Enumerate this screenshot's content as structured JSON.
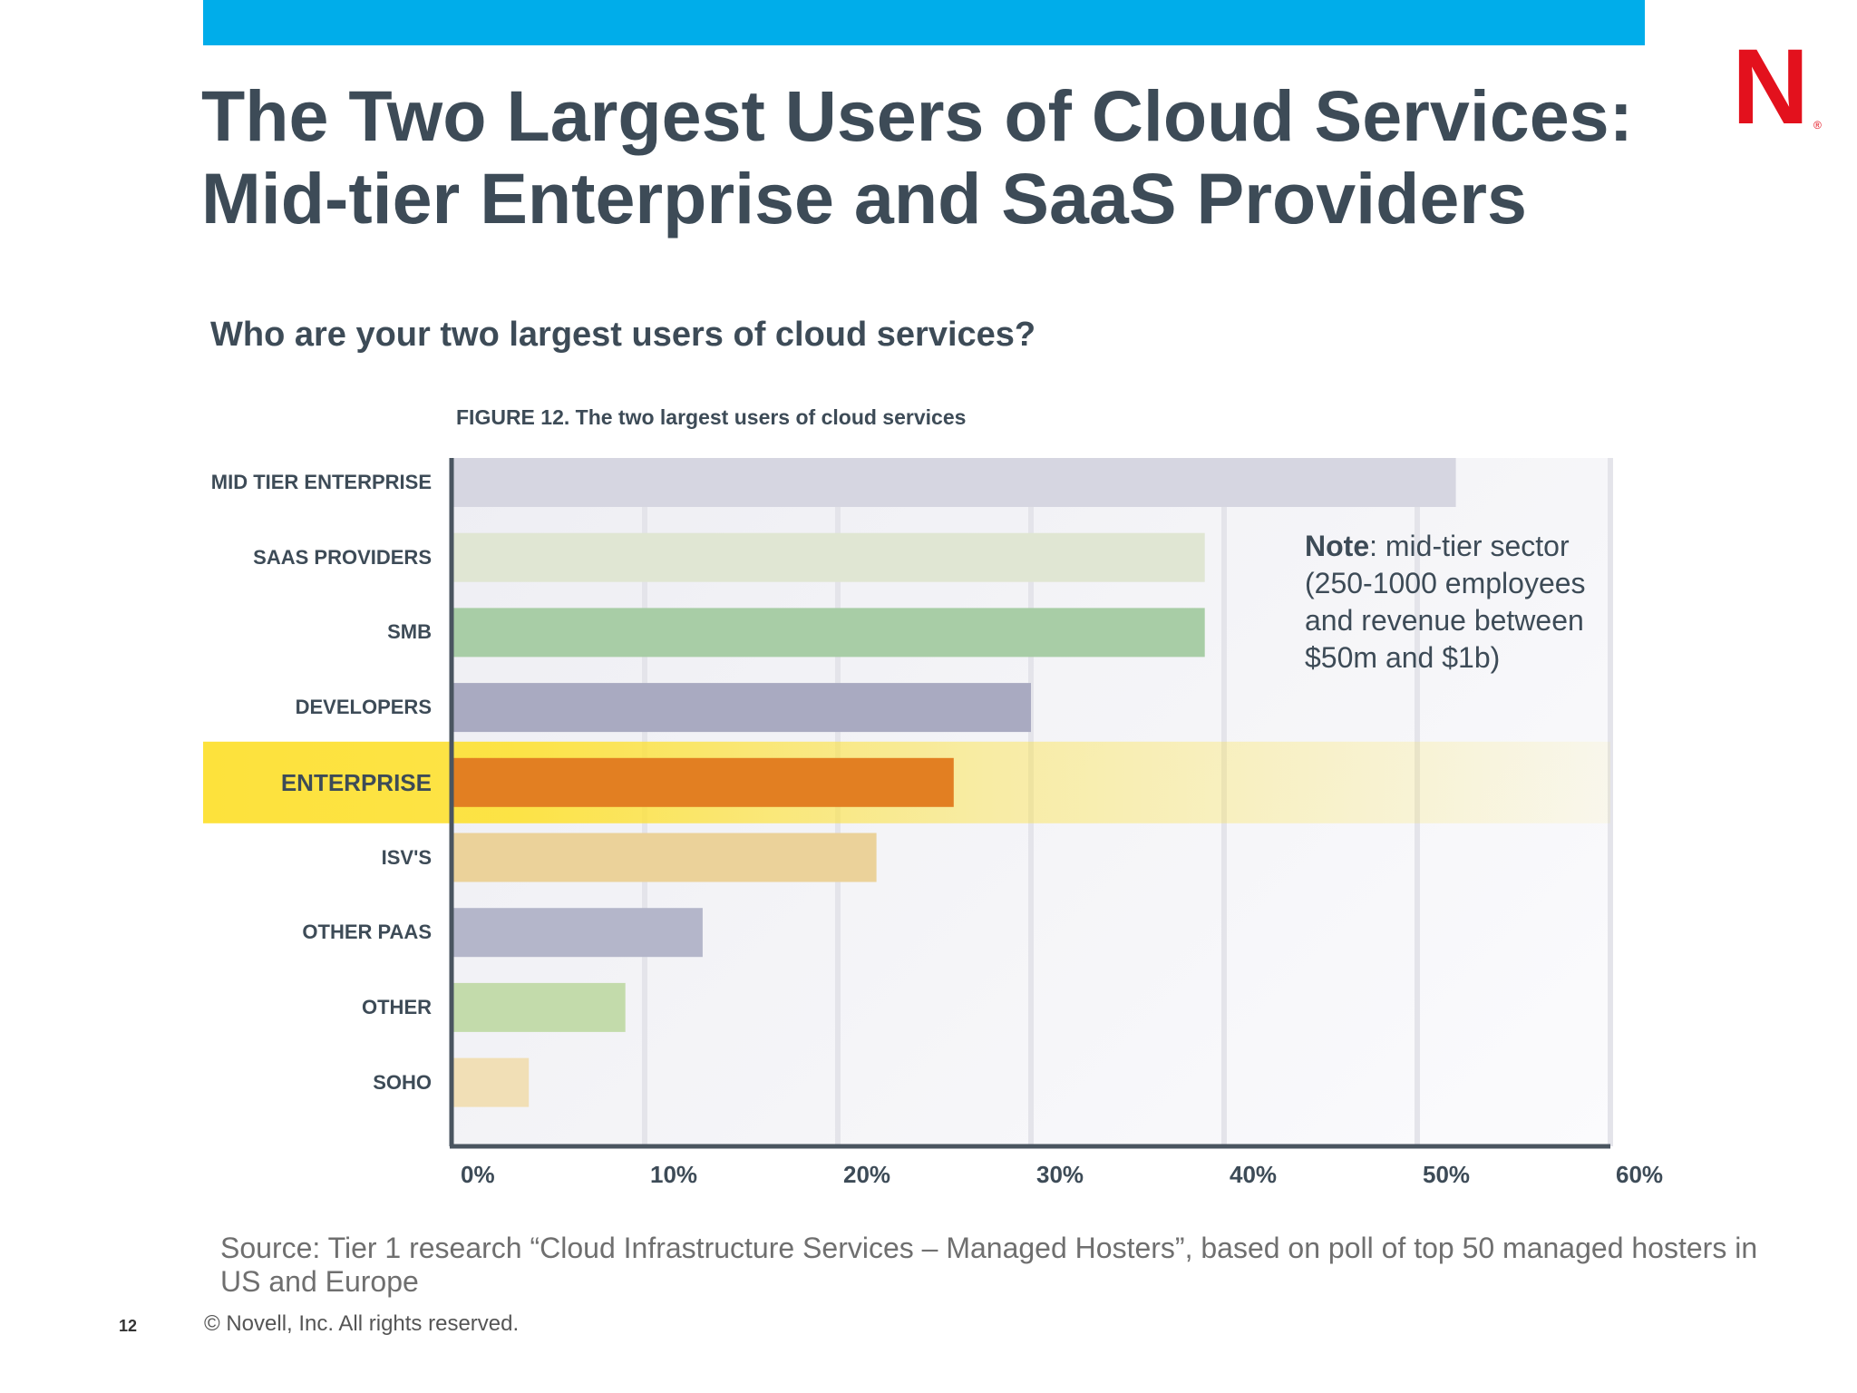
{
  "slide": {
    "title_line1": "The Two Largest Users of Cloud Services:",
    "title_line2": "Mid-tier Enterprise and SaaS Providers",
    "subtitle": "Who are your two largest users of cloud services?",
    "source": "Source: Tier 1 research “Cloud Infrastructure Services – Managed Hosters”, based on poll of top 50 managed hosters in US and Europe",
    "copyright": "©  Novell, Inc.  All rights reserved.",
    "page_number": "12",
    "logo_letter": "N",
    "logo_mark": "®"
  },
  "note": {
    "bold": "Note",
    "text": ": mid-tier sector (250-1000 employees and revenue between $50m and $1b)"
  },
  "colors": {
    "header_bar": "#00adea",
    "logo": "#e3111d",
    "highlight_band": "#fde23c",
    "title_text": "#3d4b57"
  },
  "chart_data": {
    "type": "bar",
    "orientation": "horizontal",
    "title": "FIGURE 12. The two largest users of cloud services",
    "categories": [
      "MID TIER ENTERPRISE",
      "SAAS PROVIDERS",
      "SMB",
      "DEVELOPERS",
      "ENTERPRISE",
      "ISV'S",
      "OTHER PAAS",
      "OTHER",
      "SOHO"
    ],
    "values": [
      52,
      39,
      39,
      30,
      26,
      22,
      13,
      9,
      4
    ],
    "bar_colors": [
      "#d6d6e1",
      "#e0e6d3",
      "#a8cda6",
      "#a9aac1",
      "#e27f22",
      "#ebd29a",
      "#b4b6ca",
      "#c3dbab",
      "#f1dfb6"
    ],
    "highlighted_category": "ENTERPRISE",
    "xlim": [
      0,
      60
    ],
    "x_ticks": [
      "0%",
      "10%",
      "20%",
      "30%",
      "40%",
      "50%",
      "60%"
    ],
    "grid": true,
    "xlabel": "",
    "ylabel": ""
  }
}
